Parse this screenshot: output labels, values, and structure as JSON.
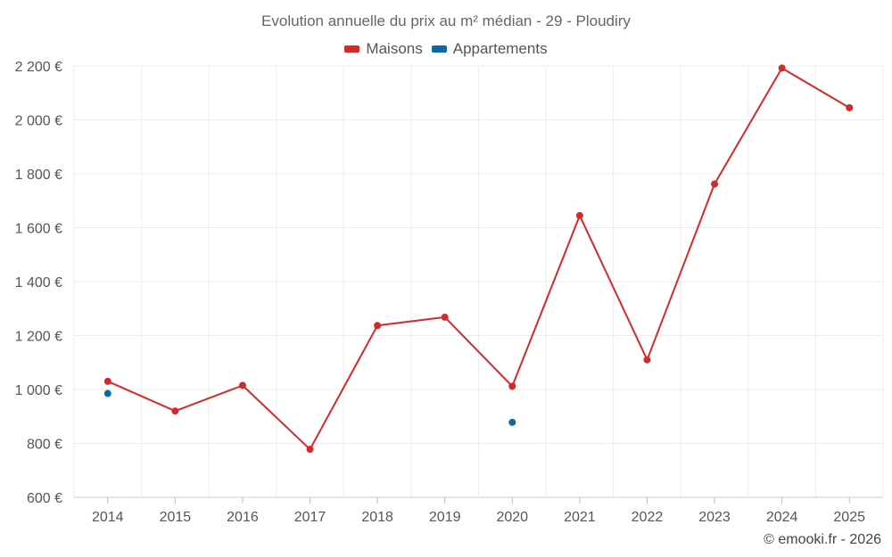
{
  "chart_data": {
    "type": "line",
    "title": "Evolution annuelle du prix au m² médian - 29 - Ploudiry",
    "categories": [
      "2014",
      "2015",
      "2016",
      "2017",
      "2018",
      "2019",
      "2020",
      "2021",
      "2022",
      "2023",
      "2024",
      "2025"
    ],
    "series": [
      {
        "name": "Maisons",
        "color": "#d32a2a",
        "values": [
          1030,
          920,
          1015,
          778,
          1237,
          1268,
          1012,
          1645,
          1110,
          1762,
          2192,
          2045
        ]
      },
      {
        "name": "Appartements",
        "color": "#0d6aa0",
        "values": [
          985,
          null,
          null,
          null,
          null,
          null,
          878,
          null,
          null,
          null,
          null,
          null
        ]
      }
    ],
    "ylim": [
      600,
      2200
    ],
    "yticks": [
      600,
      800,
      1000,
      1200,
      1400,
      1600,
      1800,
      2000,
      2200
    ],
    "ytick_labels": [
      "600 €",
      "800 €",
      "1 000 €",
      "1 200 €",
      "1 400 €",
      "1 600 €",
      "1 800 €",
      "2 000 €",
      "2 200 €"
    ],
    "xlabel": "",
    "ylabel": "",
    "grid": true,
    "legend_position": "top-center"
  },
  "credit": "© emooki.fr - 2026"
}
